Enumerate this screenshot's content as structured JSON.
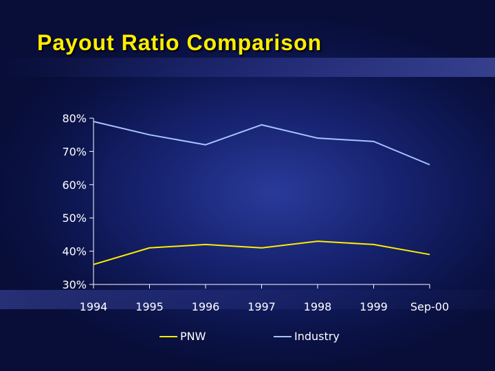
{
  "slide": {
    "title": "Payout Ratio Comparison"
  },
  "chart_data": {
    "type": "line",
    "categories": [
      "1994",
      "1995",
      "1996",
      "1997",
      "1998",
      "1999",
      "Sep-00"
    ],
    "series": [
      {
        "name": "PNW",
        "values": [
          36,
          41,
          42,
          41,
          43,
          42,
          39
        ],
        "color": "#ffee00"
      },
      {
        "name": "Industry",
        "values": [
          79,
          75,
          72,
          78,
          74,
          73,
          66
        ],
        "color": "#a8c4ff"
      }
    ],
    "ylim": [
      30,
      80
    ],
    "yticks": [
      "30%",
      "40%",
      "50%",
      "60%",
      "70%",
      "80%"
    ],
    "ytick_values": [
      30,
      40,
      50,
      60,
      70,
      80
    ],
    "grid": false,
    "legend_position": "bottom",
    "axis_color": "#ffffff"
  }
}
